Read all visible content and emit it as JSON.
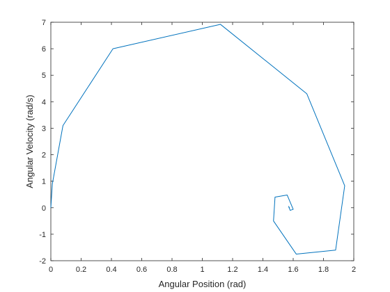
{
  "chart_data": {
    "type": "line",
    "title": "",
    "xlabel": "Angular Position (rad)",
    "ylabel": "Angular Velocity (rad/s)",
    "xlim": [
      0,
      2
    ],
    "ylim": [
      -2,
      7
    ],
    "xticks": [
      0,
      0.2,
      0.4,
      0.6,
      0.8,
      1,
      1.2,
      1.4,
      1.6,
      1.8,
      2
    ],
    "xtick_labels": [
      "0",
      "0.2",
      "0.4",
      "0.6",
      "0.8",
      "1",
      "1.2",
      "1.4",
      "1.6",
      "1.8",
      "2"
    ],
    "yticks": [
      -2,
      -1,
      0,
      1,
      2,
      3,
      4,
      5,
      6,
      7
    ],
    "ytick_labels": [
      "-2",
      "-1",
      "0",
      "1",
      "2",
      "3",
      "4",
      "5",
      "6",
      "7"
    ],
    "grid": false,
    "box": true,
    "line_color": "#0072BD",
    "series": [
      {
        "x": [
          0,
          0.01,
          0.08,
          0.41,
          1.12,
          1.69,
          1.94,
          1.88,
          1.62,
          1.47,
          1.48,
          1.56,
          1.6,
          1.58,
          1.57,
          1.575,
          1.57
        ],
        "y": [
          0,
          0.9,
          3.1,
          6.0,
          6.92,
          4.3,
          0.83,
          -1.6,
          -1.75,
          -0.5,
          0.4,
          0.48,
          -0.06,
          -0.1,
          0.05,
          0.0,
          0.0
        ]
      }
    ]
  }
}
